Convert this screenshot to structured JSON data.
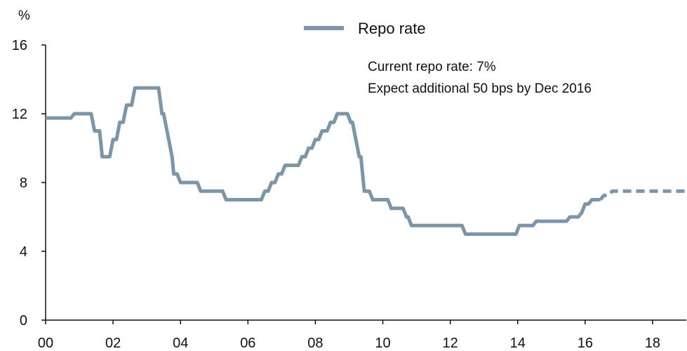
{
  "chart_data": {
    "type": "line",
    "title": "",
    "ylabel": "%",
    "xlabel": "",
    "ylim": [
      0,
      16
    ],
    "xlim": [
      2000,
      2019
    ],
    "yticks": [
      0,
      4,
      8,
      12,
      16
    ],
    "xticks": [
      2000,
      2002,
      2004,
      2006,
      2008,
      2010,
      2012,
      2014,
      2016,
      2018
    ],
    "xtick_labels": [
      "00",
      "02",
      "04",
      "06",
      "08",
      "10",
      "12",
      "14",
      "16",
      "18"
    ],
    "ytick_labels": [
      "0",
      "4",
      "8",
      "12",
      "16"
    ],
    "grid": false,
    "legend": {
      "position": "top",
      "entries": [
        "Repo rate"
      ]
    },
    "annotations": [
      "Current repo rate: 7%",
      "Expect additional 50 bps by Dec 2016"
    ],
    "color": "#7a96a8",
    "series": [
      {
        "name": "Repo rate",
        "style": "solid",
        "points": [
          [
            2000.0,
            11.75
          ],
          [
            2000.75,
            11.75
          ],
          [
            2000.85,
            12.0
          ],
          [
            2001.35,
            12.0
          ],
          [
            2001.45,
            11.0
          ],
          [
            2001.6,
            11.0
          ],
          [
            2001.68,
            9.5
          ],
          [
            2001.9,
            9.5
          ],
          [
            2002.0,
            10.5
          ],
          [
            2002.1,
            10.5
          ],
          [
            2002.2,
            11.5
          ],
          [
            2002.3,
            11.5
          ],
          [
            2002.4,
            12.5
          ],
          [
            2002.55,
            12.5
          ],
          [
            2002.65,
            13.5
          ],
          [
            2003.35,
            13.5
          ],
          [
            2003.45,
            12.0
          ],
          [
            2003.5,
            12.0
          ],
          [
            2003.75,
            9.5
          ],
          [
            2003.8,
            8.5
          ],
          [
            2003.9,
            8.5
          ],
          [
            2004.0,
            8.0
          ],
          [
            2004.5,
            8.0
          ],
          [
            2004.6,
            7.5
          ],
          [
            2005.25,
            7.5
          ],
          [
            2005.35,
            7.0
          ],
          [
            2006.4,
            7.0
          ],
          [
            2006.5,
            7.5
          ],
          [
            2006.6,
            7.5
          ],
          [
            2006.7,
            8.0
          ],
          [
            2006.8,
            8.0
          ],
          [
            2006.9,
            8.5
          ],
          [
            2007.0,
            8.5
          ],
          [
            2007.1,
            9.0
          ],
          [
            2007.5,
            9.0
          ],
          [
            2007.6,
            9.5
          ],
          [
            2007.7,
            9.5
          ],
          [
            2007.8,
            10.0
          ],
          [
            2007.9,
            10.0
          ],
          [
            2008.0,
            10.5
          ],
          [
            2008.1,
            10.5
          ],
          [
            2008.2,
            11.0
          ],
          [
            2008.35,
            11.0
          ],
          [
            2008.45,
            11.5
          ],
          [
            2008.55,
            11.5
          ],
          [
            2008.65,
            12.0
          ],
          [
            2008.95,
            12.0
          ],
          [
            2009.05,
            11.5
          ],
          [
            2009.1,
            11.5
          ],
          [
            2009.3,
            9.5
          ],
          [
            2009.35,
            9.5
          ],
          [
            2009.45,
            7.5
          ],
          [
            2009.6,
            7.5
          ],
          [
            2009.7,
            7.0
          ],
          [
            2010.15,
            7.0
          ],
          [
            2010.25,
            6.5
          ],
          [
            2010.6,
            6.5
          ],
          [
            2010.7,
            6.0
          ],
          [
            2010.75,
            6.0
          ],
          [
            2010.85,
            5.5
          ],
          [
            2012.35,
            5.5
          ],
          [
            2012.45,
            5.0
          ],
          [
            2013.95,
            5.0
          ],
          [
            2014.05,
            5.5
          ],
          [
            2014.45,
            5.5
          ],
          [
            2014.55,
            5.75
          ],
          [
            2015.45,
            5.75
          ],
          [
            2015.55,
            6.0
          ],
          [
            2015.8,
            6.0
          ],
          [
            2015.9,
            6.25
          ],
          [
            2016.0,
            6.75
          ],
          [
            2016.1,
            6.75
          ],
          [
            2016.2,
            7.0
          ],
          [
            2016.45,
            7.0
          ]
        ]
      },
      {
        "name": "",
        "style": "dashed",
        "points": [
          [
            2016.45,
            7.0
          ],
          [
            2016.55,
            7.25
          ],
          [
            2016.7,
            7.25
          ],
          [
            2016.8,
            7.5
          ],
          [
            2019.0,
            7.5
          ]
        ]
      }
    ]
  }
}
